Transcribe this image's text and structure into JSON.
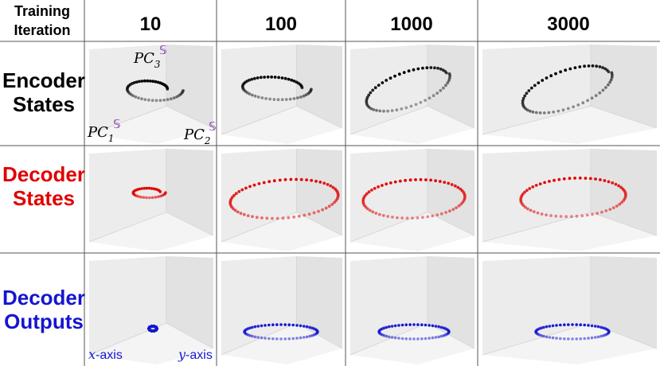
{
  "corner_header": {
    "line1": "Training",
    "line2": "Iteration"
  },
  "columns": [
    {
      "label": "10"
    },
    {
      "label": "100"
    },
    {
      "label": "1000"
    },
    {
      "label": "3000"
    }
  ],
  "rows": [
    {
      "line1": "Encoder",
      "line2": "States",
      "color": "#000000"
    },
    {
      "line1": "Decoder",
      "line2": "States",
      "color": "#e00000"
    },
    {
      "line1": "Decoder",
      "line2": "Outputs",
      "color": "#1515d0"
    }
  ],
  "axis_labels": {
    "pc3": "PC",
    "pc3_sub": "3",
    "pc1": "PC",
    "pc1_sub": "1",
    "pc2": "PC",
    "pc2_sub": "2",
    "pc_mark": "𝕊",
    "x_axis_var": "x",
    "x_axis_suffix": "-axis",
    "y_axis_var": "y",
    "y_axis_suffix": "-axis"
  },
  "colors": {
    "encoder": "#000000",
    "decoder_states": "#e00000",
    "decoder_outputs": "#1515d0",
    "pc_mark": "#7a2a9a",
    "grid": "#555555"
  }
}
